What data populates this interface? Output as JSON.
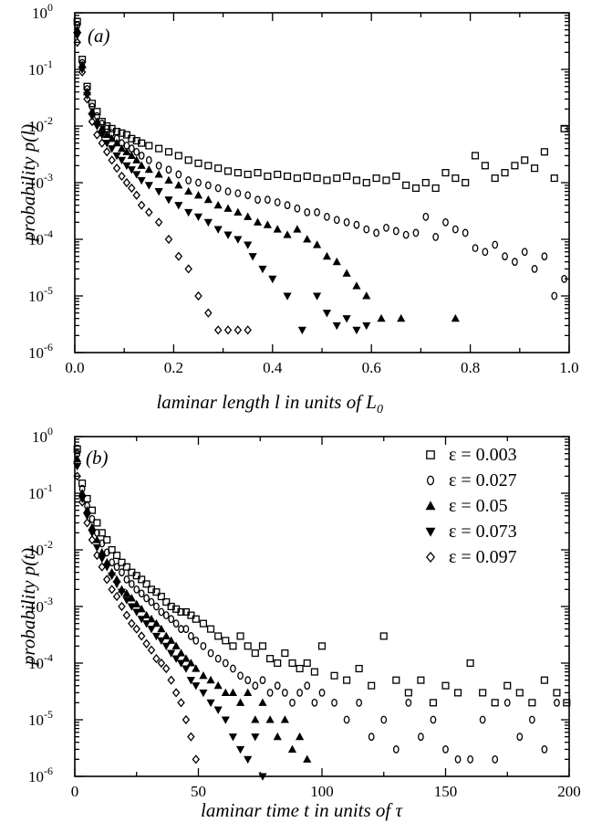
{
  "chart_data": [
    {
      "type": "scatter",
      "panel": "(a)",
      "xlabel": "laminar length l in units of L",
      "xlabel_sub": "0",
      "ylabel": "probability p(l)",
      "xlim": [
        0,
        1.0
      ],
      "ylim": [
        1e-06,
        1
      ],
      "yscale": "log",
      "x_ticks": [
        "0.0",
        "0.2",
        "0.4",
        "0.6",
        "0.8",
        "1.0"
      ],
      "y_ticks": [
        {
          "base": "10",
          "exp": "-6"
        },
        {
          "base": "10",
          "exp": "-5"
        },
        {
          "base": "10",
          "exp": "-4"
        },
        {
          "base": "10",
          "exp": "-3"
        },
        {
          "base": "10",
          "exp": "-2"
        },
        {
          "base": "10",
          "exp": "-1"
        },
        {
          "base": "10",
          "exp": "0"
        }
      ],
      "series": [
        {
          "marker": "square",
          "x": [
            0.005,
            0.015,
            0.025,
            0.035,
            0.045,
            0.055,
            0.065,
            0.075,
            0.085,
            0.095,
            0.105,
            0.115,
            0.125,
            0.135,
            0.15,
            0.17,
            0.19,
            0.21,
            0.23,
            0.25,
            0.27,
            0.29,
            0.31,
            0.33,
            0.35,
            0.37,
            0.39,
            0.41,
            0.43,
            0.45,
            0.47,
            0.49,
            0.51,
            0.53,
            0.55,
            0.57,
            0.59,
            0.61,
            0.63,
            0.65,
            0.67,
            0.69,
            0.71,
            0.73,
            0.75,
            0.77,
            0.79,
            0.81,
            0.83,
            0.85,
            0.87,
            0.89,
            0.91,
            0.93,
            0.95,
            0.97,
            0.99
          ],
          "y": [
            0.7,
            0.15,
            0.05,
            0.025,
            0.018,
            0.012,
            0.01,
            0.009,
            0.008,
            0.0075,
            0.007,
            0.006,
            0.0055,
            0.005,
            0.0045,
            0.004,
            0.0035,
            0.003,
            0.0025,
            0.0022,
            0.002,
            0.0018,
            0.0016,
            0.0015,
            0.0014,
            0.0015,
            0.0013,
            0.0014,
            0.0013,
            0.0012,
            0.0013,
            0.0012,
            0.0011,
            0.0012,
            0.0013,
            0.0011,
            0.001,
            0.0012,
            0.0011,
            0.0013,
            0.0009,
            0.0008,
            0.001,
            0.0008,
            0.0015,
            0.0012,
            0.001,
            0.003,
            0.002,
            0.0012,
            0.0015,
            0.002,
            0.0025,
            0.0018,
            0.0035,
            0.0012,
            0.009
          ]
        },
        {
          "marker": "circle",
          "x": [
            0.005,
            0.015,
            0.025,
            0.035,
            0.045,
            0.055,
            0.065,
            0.075,
            0.085,
            0.095,
            0.105,
            0.115,
            0.125,
            0.135,
            0.15,
            0.17,
            0.19,
            0.21,
            0.23,
            0.25,
            0.27,
            0.29,
            0.31,
            0.33,
            0.35,
            0.37,
            0.39,
            0.41,
            0.43,
            0.45,
            0.47,
            0.49,
            0.51,
            0.53,
            0.55,
            0.57,
            0.59,
            0.61,
            0.63,
            0.65,
            0.67,
            0.69,
            0.71,
            0.73,
            0.75,
            0.77,
            0.79,
            0.81,
            0.83,
            0.85,
            0.87,
            0.89,
            0.91,
            0.93,
            0.95,
            0.97,
            0.99
          ],
          "y": [
            0.6,
            0.13,
            0.045,
            0.022,
            0.015,
            0.011,
            0.009,
            0.0075,
            0.006,
            0.005,
            0.0045,
            0.004,
            0.0035,
            0.003,
            0.0025,
            0.002,
            0.0017,
            0.0014,
            0.0011,
            0.001,
            0.0009,
            0.0008,
            0.0007,
            0.00065,
            0.0006,
            0.0005,
            0.0005,
            0.00045,
            0.0004,
            0.00035,
            0.0003,
            0.0003,
            0.00025,
            0.00022,
            0.0002,
            0.00018,
            0.00015,
            0.00013,
            0.00016,
            0.00014,
            0.00012,
            0.00013,
            0.00025,
            0.00011,
            0.0002,
            0.00015,
            0.00013,
            7e-05,
            6e-05,
            8e-05,
            5e-05,
            4e-05,
            6e-05,
            3e-05,
            5e-05,
            1e-05,
            2e-05
          ]
        },
        {
          "marker": "triangle-up",
          "x": [
            0.005,
            0.015,
            0.025,
            0.035,
            0.045,
            0.055,
            0.065,
            0.075,
            0.085,
            0.095,
            0.105,
            0.115,
            0.125,
            0.135,
            0.15,
            0.17,
            0.19,
            0.21,
            0.23,
            0.25,
            0.27,
            0.29,
            0.31,
            0.33,
            0.35,
            0.37,
            0.39,
            0.41,
            0.43,
            0.45,
            0.47,
            0.49,
            0.51,
            0.53,
            0.55,
            0.57,
            0.59,
            0.62,
            0.66,
            0.77
          ],
          "y": [
            0.5,
            0.12,
            0.04,
            0.018,
            0.012,
            0.009,
            0.007,
            0.006,
            0.005,
            0.004,
            0.0035,
            0.003,
            0.0025,
            0.002,
            0.0017,
            0.0014,
            0.0011,
            0.0009,
            0.0007,
            0.0006,
            0.0005,
            0.0004,
            0.00035,
            0.0003,
            0.00025,
            0.0002,
            0.00018,
            0.00015,
            0.00012,
            0.00015,
            0.0001,
            8e-05,
            5e-05,
            4e-05,
            2.5e-05,
            1.5e-05,
            1e-05,
            4e-06,
            4e-06,
            4e-06
          ]
        },
        {
          "marker": "triangle-down",
          "x": [
            0.005,
            0.015,
            0.025,
            0.035,
            0.045,
            0.055,
            0.065,
            0.075,
            0.085,
            0.095,
            0.105,
            0.115,
            0.125,
            0.135,
            0.15,
            0.17,
            0.19,
            0.21,
            0.23,
            0.25,
            0.27,
            0.29,
            0.31,
            0.33,
            0.35,
            0.36,
            0.38,
            0.4,
            0.43,
            0.46,
            0.49,
            0.51,
            0.53,
            0.55,
            0.57,
            0.59
          ],
          "y": [
            0.4,
            0.1,
            0.035,
            0.015,
            0.01,
            0.007,
            0.005,
            0.004,
            0.003,
            0.0025,
            0.002,
            0.0017,
            0.0014,
            0.0011,
            0.0009,
            0.0007,
            0.0005,
            0.0004,
            0.0003,
            0.00025,
            0.0002,
            0.00015,
            0.00012,
            0.0001,
            8e-05,
            5e-05,
            3e-05,
            2e-05,
            1e-05,
            2.5e-06,
            1e-05,
            5e-06,
            3e-06,
            4e-06,
            2.5e-06,
            3e-06
          ]
        },
        {
          "marker": "diamond",
          "x": [
            0.005,
            0.015,
            0.025,
            0.035,
            0.045,
            0.055,
            0.065,
            0.075,
            0.085,
            0.095,
            0.105,
            0.115,
            0.125,
            0.135,
            0.15,
            0.17,
            0.19,
            0.21,
            0.23,
            0.25,
            0.27,
            0.29,
            0.31,
            0.33,
            0.35
          ],
          "y": [
            0.3,
            0.09,
            0.03,
            0.012,
            0.007,
            0.005,
            0.0035,
            0.0025,
            0.0018,
            0.0013,
            0.001,
            0.0008,
            0.0006,
            0.0004,
            0.0003,
            0.0002,
            0.0001,
            5e-05,
            3e-05,
            1e-05,
            5e-06,
            2.5e-06,
            2.5e-06,
            2.5e-06,
            2.5e-06
          ]
        }
      ]
    },
    {
      "type": "scatter",
      "panel": "(b)",
      "xlabel": "laminar time t in units of τ",
      "ylabel": "probability p(t)",
      "xlim": [
        0,
        200
      ],
      "ylim": [
        1e-06,
        1
      ],
      "yscale": "log",
      "x_ticks": [
        "0",
        "50",
        "100",
        "150",
        "200"
      ],
      "y_ticks": [
        {
          "base": "10",
          "exp": "-6"
        },
        {
          "base": "10",
          "exp": "-5"
        },
        {
          "base": "10",
          "exp": "-4"
        },
        {
          "base": "10",
          "exp": "-3"
        },
        {
          "base": "10",
          "exp": "-2"
        },
        {
          "base": "10",
          "exp": "-1"
        },
        {
          "base": "10",
          "exp": "0"
        }
      ],
      "legend_position": "top-right",
      "series": [
        {
          "name": "ε = 0.003",
          "marker": "square",
          "x": [
            1,
            3,
            5,
            7,
            9,
            11,
            13,
            15,
            17,
            19,
            21,
            23,
            25,
            27,
            29,
            31,
            33,
            35,
            37,
            39,
            41,
            43,
            45,
            47,
            49,
            52,
            55,
            58,
            61,
            64,
            67,
            70,
            73,
            76,
            79,
            82,
            85,
            88,
            91,
            94,
            97,
            100,
            105,
            110,
            115,
            120,
            125,
            130,
            135,
            140,
            145,
            150,
            155,
            160,
            165,
            170,
            175,
            180,
            185,
            190,
            195,
            199
          ],
          "y": [
            0.6,
            0.15,
            0.08,
            0.05,
            0.03,
            0.02,
            0.015,
            0.01,
            0.008,
            0.006,
            0.005,
            0.004,
            0.0035,
            0.003,
            0.0025,
            0.002,
            0.0018,
            0.0015,
            0.0012,
            0.001,
            0.0009,
            0.0008,
            0.0008,
            0.0007,
            0.0006,
            0.0005,
            0.0004,
            0.0003,
            0.00025,
            0.0002,
            0.0003,
            0.0002,
            0.00015,
            0.0002,
            0.00012,
            0.0001,
            0.00015,
            0.0001,
            8e-05,
            0.0001,
            7e-05,
            0.0002,
            6e-05,
            5e-05,
            8e-05,
            4e-05,
            0.0003,
            5e-05,
            3e-05,
            5e-05,
            2e-05,
            4e-05,
            3e-05,
            0.0001,
            3e-05,
            2e-05,
            4e-05,
            3e-05,
            2e-05,
            5e-05,
            3e-05,
            2e-05
          ]
        },
        {
          "name": "ε = 0.027",
          "marker": "circle",
          "x": [
            1,
            3,
            5,
            7,
            9,
            11,
            13,
            15,
            17,
            19,
            21,
            23,
            25,
            27,
            29,
            31,
            33,
            35,
            37,
            39,
            41,
            43,
            45,
            47,
            49,
            52,
            55,
            58,
            61,
            64,
            67,
            70,
            73,
            76,
            79,
            82,
            85,
            88,
            91,
            94,
            97,
            100,
            105,
            110,
            115,
            120,
            125,
            130,
            135,
            140,
            145,
            150,
            155,
            160,
            165,
            170,
            175,
            180,
            185,
            190,
            195
          ],
          "y": [
            0.5,
            0.12,
            0.06,
            0.035,
            0.02,
            0.013,
            0.009,
            0.006,
            0.005,
            0.004,
            0.003,
            0.0025,
            0.002,
            0.0017,
            0.0014,
            0.0012,
            0.001,
            0.0008,
            0.0007,
            0.0006,
            0.0005,
            0.0004,
            0.0004,
            0.0003,
            0.00025,
            0.0002,
            0.00015,
            0.00012,
            0.0001,
            8e-05,
            6e-05,
            5e-05,
            4e-05,
            5e-05,
            3e-05,
            4e-05,
            3e-05,
            2e-05,
            3e-05,
            4e-05,
            2e-05,
            3e-05,
            2e-05,
            1e-05,
            2e-05,
            5e-06,
            1e-05,
            3e-06,
            2e-05,
            5e-06,
            1e-05,
            3e-06,
            2e-06,
            2e-06,
            1e-05,
            2e-06,
            2e-05,
            5e-06,
            1e-05,
            3e-06,
            2e-05
          ]
        },
        {
          "name": "ε = 0.05",
          "marker": "triangle-up",
          "x": [
            1,
            3,
            5,
            7,
            9,
            11,
            13,
            15,
            17,
            19,
            21,
            23,
            25,
            27,
            29,
            31,
            33,
            35,
            37,
            39,
            41,
            43,
            45,
            47,
            49,
            52,
            55,
            58,
            61,
            64,
            67,
            70,
            73,
            76,
            79,
            82,
            85,
            88,
            91,
            94
          ],
          "y": [
            0.4,
            0.1,
            0.05,
            0.025,
            0.015,
            0.009,
            0.006,
            0.004,
            0.003,
            0.002,
            0.0017,
            0.0014,
            0.0011,
            0.0009,
            0.0007,
            0.0006,
            0.0005,
            0.0004,
            0.0003,
            0.00025,
            0.0002,
            0.00015,
            0.00012,
            0.0001,
            8e-05,
            6e-05,
            5e-05,
            4e-05,
            3e-05,
            3e-05,
            2e-05,
            3e-05,
            1e-05,
            2e-05,
            1e-05,
            5e-06,
            1e-05,
            3e-06,
            5e-06,
            2e-06
          ]
        },
        {
          "name": "ε = 0.073",
          "marker": "triangle-down",
          "x": [
            1,
            3,
            5,
            7,
            9,
            11,
            13,
            15,
            17,
            19,
            21,
            23,
            25,
            27,
            29,
            31,
            33,
            35,
            37,
            39,
            41,
            43,
            45,
            47,
            49,
            52,
            55,
            58,
            61,
            64,
            67,
            70,
            73,
            76
          ],
          "y": [
            0.3,
            0.08,
            0.04,
            0.02,
            0.011,
            0.007,
            0.005,
            0.0035,
            0.0025,
            0.0018,
            0.0013,
            0.001,
            0.0008,
            0.0006,
            0.0005,
            0.0004,
            0.0003,
            0.00025,
            0.0002,
            0.00015,
            0.00012,
            0.0001,
            8e-05,
            5e-05,
            4e-05,
            3e-05,
            2e-05,
            1.5e-05,
            1e-05,
            5e-06,
            3e-06,
            2e-06,
            5e-06,
            1e-06
          ]
        },
        {
          "name": "ε = 0.097",
          "marker": "diamond",
          "x": [
            1,
            3,
            5,
            7,
            9,
            11,
            13,
            15,
            17,
            19,
            21,
            23,
            25,
            27,
            29,
            31,
            33,
            35,
            37,
            39,
            41,
            43,
            45,
            47,
            49
          ],
          "y": [
            0.2,
            0.07,
            0.03,
            0.015,
            0.008,
            0.005,
            0.003,
            0.002,
            0.0015,
            0.001,
            0.0007,
            0.0005,
            0.0004,
            0.0003,
            0.00022,
            0.00017,
            0.00012,
            0.0001,
            8e-05,
            5e-05,
            3e-05,
            2e-05,
            1e-05,
            5e-06,
            2e-06
          ]
        }
      ]
    }
  ]
}
